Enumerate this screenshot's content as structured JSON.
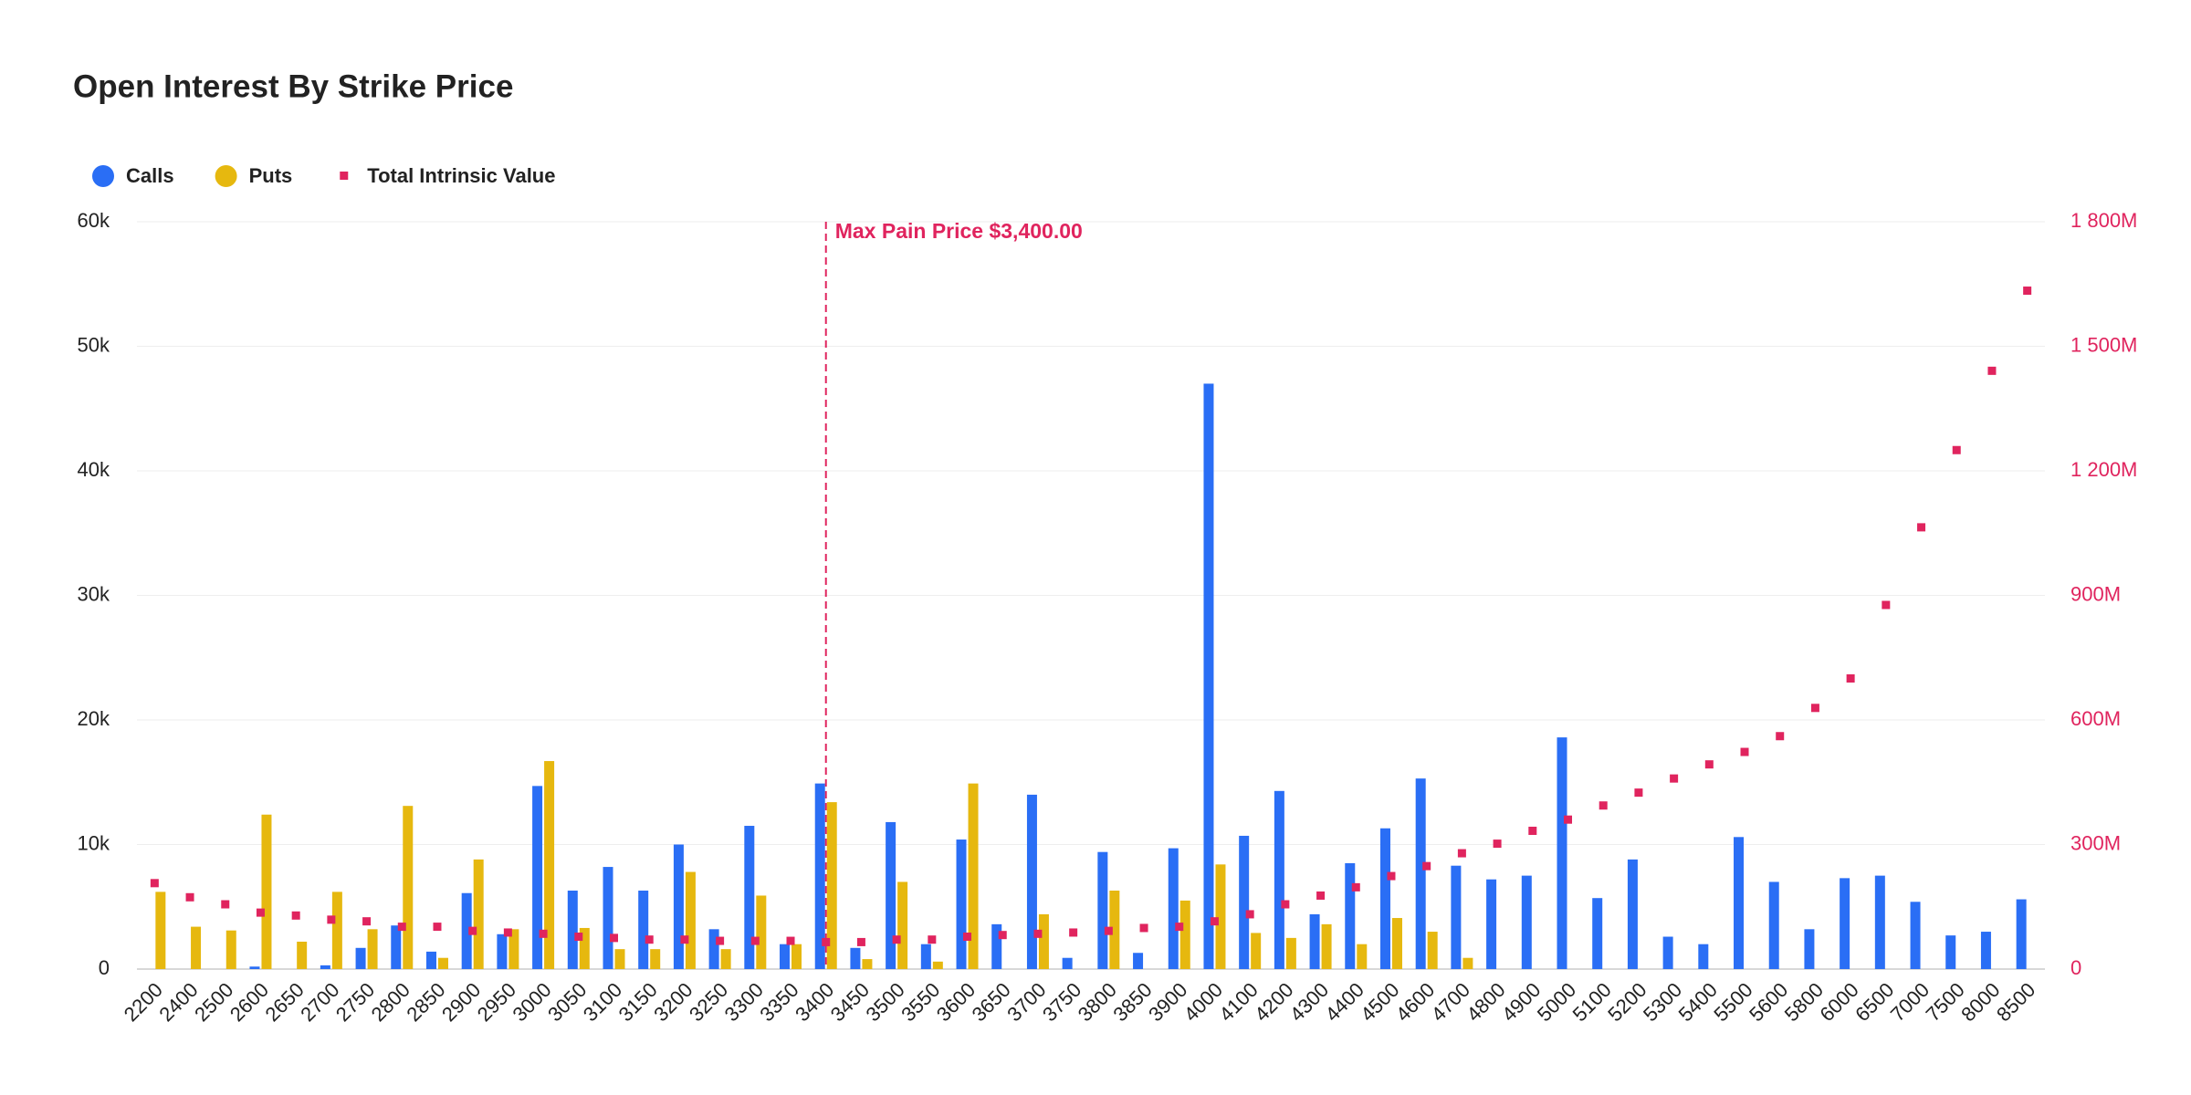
{
  "chart_data": {
    "type": "bar_scatter",
    "title": "Open Interest By Strike Price",
    "categories": [
      "2200",
      "2400",
      "2500",
      "2600",
      "2650",
      "2700",
      "2750",
      "2800",
      "2850",
      "2900",
      "2950",
      "3000",
      "3050",
      "3100",
      "3150",
      "3200",
      "3250",
      "3300",
      "3350",
      "3400",
      "3450",
      "3500",
      "3550",
      "3600",
      "3650",
      "3700",
      "3750",
      "3800",
      "3850",
      "3900",
      "4000",
      "4100",
      "4200",
      "4300",
      "4400",
      "4500",
      "4600",
      "4700",
      "4800",
      "4900",
      "5000",
      "5100",
      "5200",
      "5300",
      "5400",
      "5500",
      "5600",
      "5800",
      "6000",
      "6500",
      "7000",
      "7500",
      "8000",
      "8500"
    ],
    "series": [
      {
        "name": "Calls",
        "type": "bar",
        "color": "#2a6ef5",
        "values": [
          0,
          0,
          0,
          200,
          0,
          300,
          1700,
          3500,
          1400,
          6100,
          2800,
          14700,
          6300,
          8200,
          6300,
          10000,
          3200,
          11500,
          2000,
          14900,
          1700,
          11800,
          2000,
          10400,
          3600,
          14000,
          900,
          9400,
          1300,
          9700,
          47000,
          10700,
          14300,
          4400,
          8500,
          11300,
          15300,
          8300,
          7200,
          7500,
          18600,
          5700,
          8800,
          2600,
          2000,
          10600,
          7000,
          3200,
          7300,
          7500,
          5400,
          2700,
          3000,
          5600
        ]
      },
      {
        "name": "Puts",
        "type": "bar",
        "color": "#e6b80f",
        "values": [
          6200,
          3400,
          3100,
          12400,
          2200,
          6200,
          3200,
          13100,
          900,
          8800,
          3200,
          16700,
          3300,
          1600,
          1600,
          7800,
          1600,
          5900,
          2000,
          13400,
          800,
          7000,
          600,
          14900,
          0,
          4400,
          0,
          6300,
          0,
          5500,
          8400,
          2900,
          2500,
          3600,
          2000,
          4100,
          3000,
          900,
          0,
          0,
          0,
          0,
          0,
          0,
          0,
          0,
          0,
          0,
          0,
          0,
          0,
          0,
          0,
          0
        ]
      },
      {
        "name": "Total Intrinsic Value",
        "type": "scatter",
        "axis": "y2",
        "color": "#e0245e",
        "values": [
          207,
          173,
          156,
          136,
          129,
          119,
          115,
          102,
          102,
          92,
          88,
          85,
          78,
          75,
          71,
          71,
          68,
          68,
          68,
          65,
          65,
          71,
          71,
          78,
          82,
          85,
          88,
          92,
          99,
          102,
          115,
          132,
          156,
          177,
          197,
          224,
          248,
          279,
          302,
          333,
          360,
          394,
          425,
          459,
          493,
          523,
          561,
          629,
          700,
          877,
          1064,
          1250,
          1441,
          1634
        ]
      }
    ],
    "ylim": [
      0,
      60000
    ],
    "yticks": [
      0,
      {
        "value": 10000,
        "label": "10k"
      },
      {
        "value": 20000,
        "label": "20k"
      },
      {
        "value": 30000,
        "label": "30k"
      },
      {
        "value": 40000,
        "label": "40k"
      },
      {
        "value": 50000,
        "label": "50k"
      },
      {
        "value": 60000,
        "label": "60k"
      }
    ],
    "y2lim": [
      0,
      1800
    ],
    "y2ticks": [
      0,
      {
        "value": 300,
        "label": "300M"
      },
      {
        "value": 600,
        "label": "600M"
      },
      {
        "value": 900,
        "label": "900M"
      },
      {
        "value": 1200,
        "label": "1 200M"
      },
      {
        "value": 1500,
        "label": "1 500M"
      },
      {
        "value": 1800,
        "label": "1 800M"
      }
    ],
    "grid": true,
    "annotation": {
      "text": "Max Pain Price $3,400.00",
      "category": "3400",
      "color": "#e0245e"
    }
  }
}
